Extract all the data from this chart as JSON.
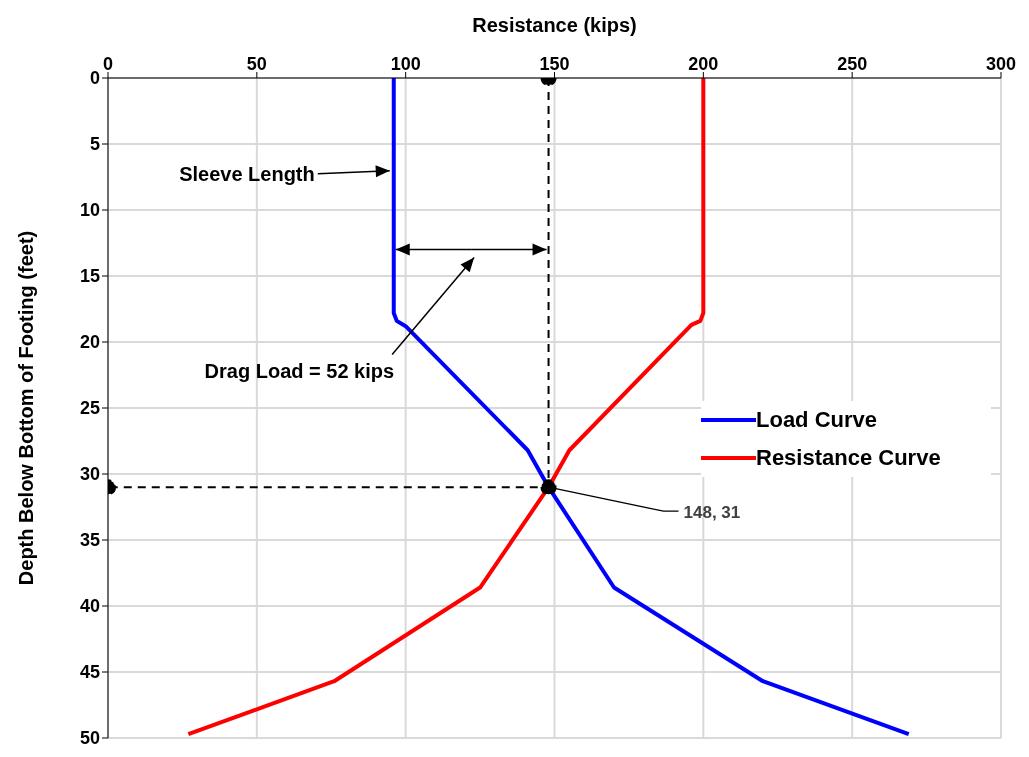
{
  "chart_data": {
    "type": "line",
    "xlabel": "Resistance (kips)",
    "ylabel": "Depth Below Bottom of Footing (feet)",
    "xlim": [
      0,
      300
    ],
    "xticks": [
      0,
      50,
      100,
      150,
      200,
      250,
      300
    ],
    "ylim": [
      50,
      0
    ],
    "yticks": [
      0,
      5,
      10,
      15,
      20,
      25,
      30,
      35,
      40,
      45,
      50
    ],
    "grid": true,
    "legend": "right",
    "line_style": "solid",
    "marker": "none",
    "series": [
      {
        "name": "Load Curve",
        "color": "#0000ff",
        "x": [
          96,
          96,
          97,
          100,
          141,
          148,
          170,
          220,
          269
        ],
        "values": [
          0,
          17.8,
          18.4,
          18.8,
          28.2,
          31,
          38.6,
          45.7,
          49.7
        ]
      },
      {
        "name": "Resistance Curve",
        "color": "#ff0000",
        "x": [
          200,
          200,
          199,
          196,
          155,
          148,
          125,
          76,
          27
        ],
        "values": [
          0,
          17.8,
          18.4,
          18.7,
          28.2,
          31,
          38.6,
          45.7,
          49.7
        ]
      },
      {
        "color": "#000000",
        "line_style": "dashed",
        "marker": "circle",
        "x": [
          148,
          148,
          0
        ],
        "values": [
          0,
          31,
          31
        ]
      }
    ],
    "annotations": [
      "Sleeve Length",
      "Drag Load = 52 kips",
      {
        "text": "148, 31",
        "x": 148,
        "y": 31
      }
    ]
  }
}
